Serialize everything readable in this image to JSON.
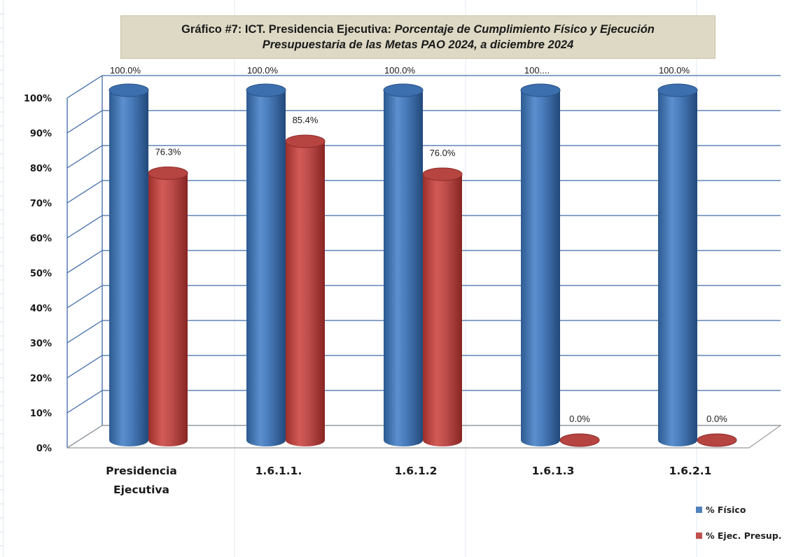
{
  "chart_data": {
    "type": "bar",
    "title_prefix": "Gráfico #7: ICT. Presidencia Ejecutiva: ",
    "title_italic_1": "Porcentaje de  Cumplimiento Físico y  Ejecución",
    "title_italic_2": "Presupuestaria de las Metas  PAO 2024, a diciembre 2024",
    "categories": [
      "Presidencia Ejecutiva",
      "1.6.1.1.",
      "1.6.1.2",
      "1.6.1.3",
      "1.6.2.1"
    ],
    "series": [
      {
        "name": "% Físico",
        "color": "#4f81bd",
        "values": [
          100.0,
          100.0,
          100.0,
          100.0,
          100.0
        ],
        "labels": [
          "100.0%",
          "100.0%",
          "100.0%",
          "100....",
          "100.0%"
        ]
      },
      {
        "name": "% Ejec. Presup.",
        "color": "#c0504d",
        "values": [
          76.3,
          85.4,
          76.0,
          0.0,
          0.0
        ],
        "labels": [
          "76.3%",
          "85.4%",
          "76.0%",
          "0.0%",
          "0.0%"
        ]
      }
    ],
    "yticks": [
      "0%",
      "10%",
      "20%",
      "30%",
      "40%",
      "50%",
      "60%",
      "70%",
      "80%",
      "90%",
      "100%"
    ],
    "ylim": [
      0,
      100
    ],
    "grid": true,
    "style": "3d-cylinder",
    "legend_position": "bottom-right"
  }
}
